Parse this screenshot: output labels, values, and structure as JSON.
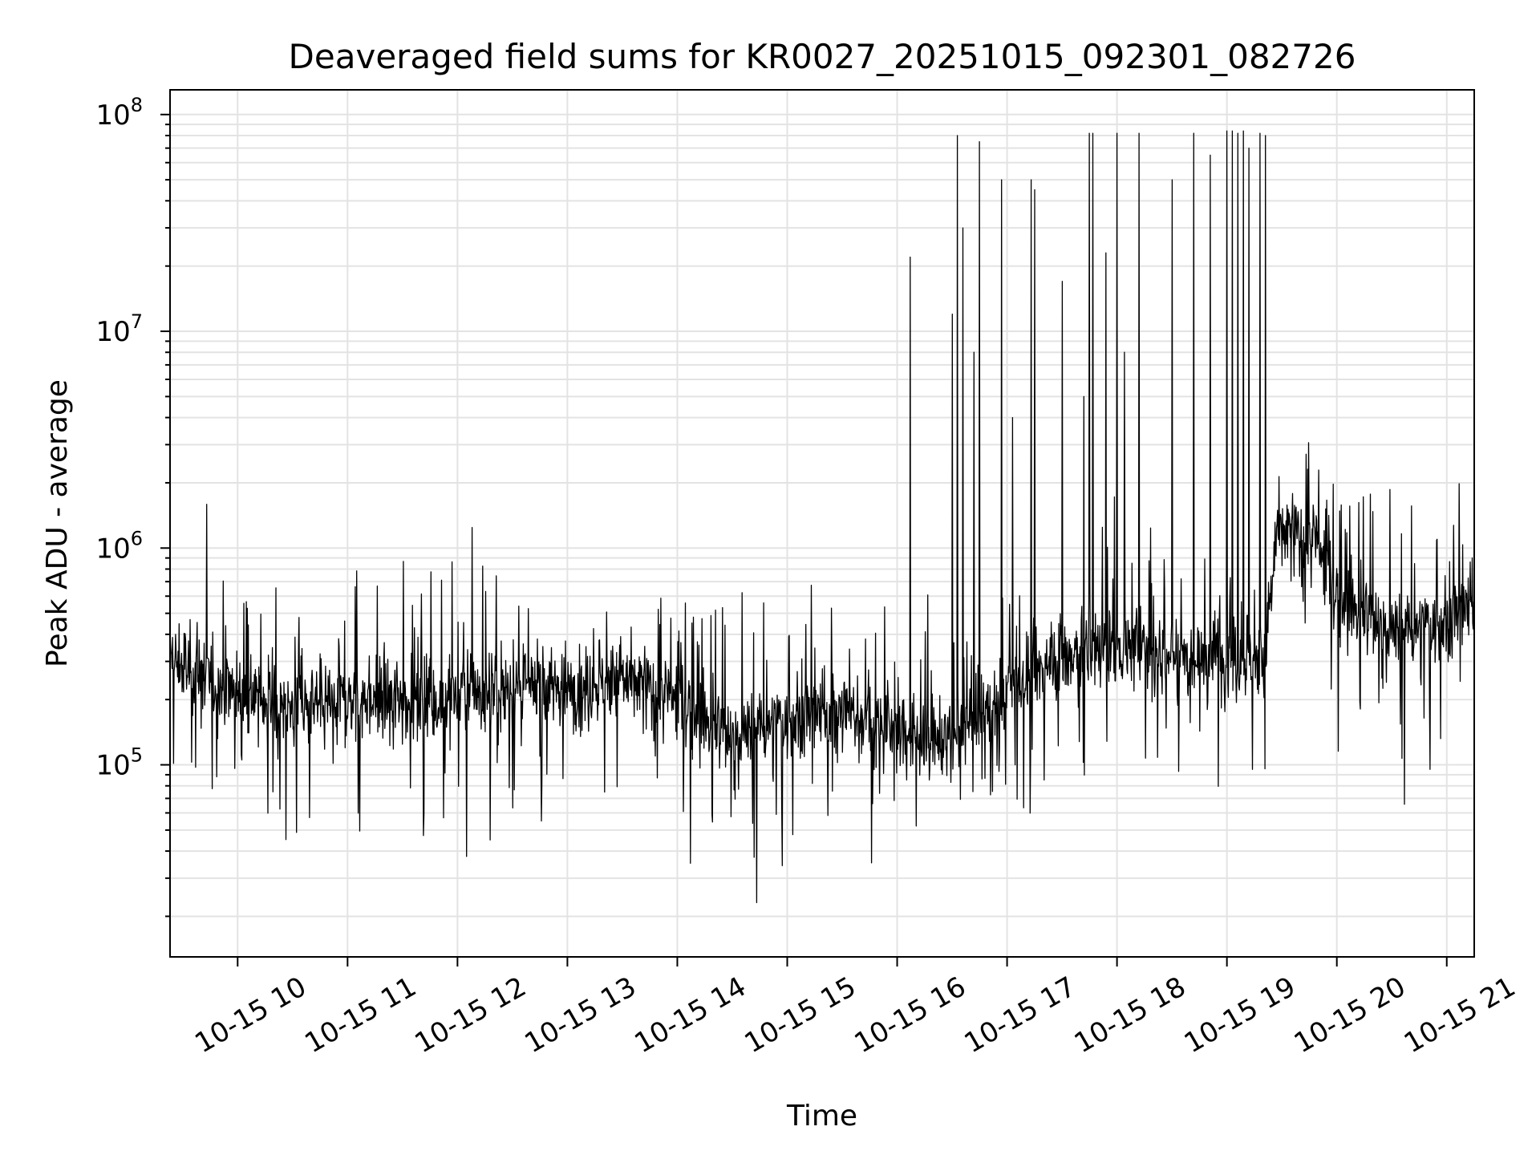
{
  "chart_data": {
    "type": "line",
    "title": "Deaveraged field sums for KR0027_20251015_092301_082726",
    "xlabel": "Time",
    "ylabel": "Peak ADU - average",
    "yscale": "log",
    "ylim": [
      13000,
      130000000
    ],
    "xlim_hours": [
      9.385,
      21.25
    ],
    "x_tick_labels": [
      "10-15 10",
      "10-15 11",
      "10-15 12",
      "10-15 13",
      "10-15 14",
      "10-15 15",
      "10-15 16",
      "10-15 17",
      "10-15 18",
      "10-15 19",
      "10-15 20",
      "10-15 21"
    ],
    "x_tick_hours": [
      10,
      11,
      12,
      13,
      14,
      15,
      16,
      17,
      18,
      19,
      20,
      21
    ],
    "y_ticks": [
      {
        "value": 100000,
        "base": "10",
        "exp": "5"
      },
      {
        "value": 1000000,
        "base": "10",
        "exp": "6"
      },
      {
        "value": 10000000,
        "base": "10",
        "exp": "7"
      },
      {
        "value": 100000000,
        "base": "10",
        "exp": "8"
      }
    ],
    "grid": true,
    "line_color": "#000000",
    "baseline_trend": {
      "hours": [
        9.385,
        10.0,
        10.5,
        11.0,
        12.0,
        13.0,
        13.5,
        14.0,
        14.5,
        14.8,
        15.5,
        16.0,
        16.5,
        17.0,
        17.5,
        18.0,
        18.5,
        19.0,
        19.35,
        19.45,
        19.8,
        20.0,
        20.5,
        21.0,
        21.25
      ],
      "values": [
        300000,
        220000,
        180000,
        200000,
        210000,
        230000,
        250000,
        200000,
        130000,
        150000,
        180000,
        140000,
        130000,
        220000,
        320000,
        350000,
        320000,
        330000,
        300000,
        1200000,
        1100000,
        600000,
        400000,
        450000,
        550000
      ]
    },
    "spikes": [
      {
        "hour": 16.12,
        "value": 22000000
      },
      {
        "hour": 16.5,
        "value": 12000000
      },
      {
        "hour": 16.55,
        "value": 80000000
      },
      {
        "hour": 16.6,
        "value": 30000000
      },
      {
        "hour": 16.7,
        "value": 8000000
      },
      {
        "hour": 16.75,
        "value": 75000000
      },
      {
        "hour": 16.95,
        "value": 50000000
      },
      {
        "hour": 17.05,
        "value": 4000000
      },
      {
        "hour": 17.22,
        "value": 50000000
      },
      {
        "hour": 17.25,
        "value": 45000000
      },
      {
        "hour": 17.5,
        "value": 17000000
      },
      {
        "hour": 17.7,
        "value": 5000000
      },
      {
        "hour": 17.75,
        "value": 82000000
      },
      {
        "hour": 17.78,
        "value": 82000000
      },
      {
        "hour": 17.9,
        "value": 23000000
      },
      {
        "hour": 18.0,
        "value": 82000000
      },
      {
        "hour": 18.07,
        "value": 8000000
      },
      {
        "hour": 18.2,
        "value": 82000000
      },
      {
        "hour": 18.7,
        "value": 82000000
      },
      {
        "hour": 18.5,
        "value": 50000000
      },
      {
        "hour": 18.85,
        "value": 65000000
      },
      {
        "hour": 19.0,
        "value": 84000000
      },
      {
        "hour": 19.05,
        "value": 84000000
      },
      {
        "hour": 19.1,
        "value": 82000000
      },
      {
        "hour": 19.15,
        "value": 84000000
      },
      {
        "hour": 19.2,
        "value": 70000000
      },
      {
        "hour": 19.3,
        "value": 82000000
      },
      {
        "hour": 19.35,
        "value": 80000000
      }
    ]
  }
}
